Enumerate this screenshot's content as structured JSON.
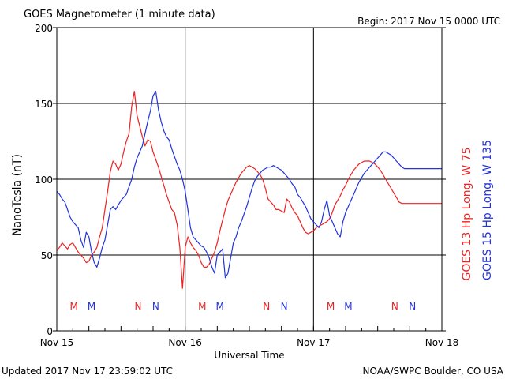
{
  "header": {
    "title": "GOES Magnetometer (1 minute data)",
    "begin": "Begin:  2017 Nov 15 0000 UTC"
  },
  "footer": {
    "updated": "Updated 2017 Nov 17 23:59:02 UTC",
    "source": "NOAA/SWPC Boulder, CO USA"
  },
  "colors": {
    "goes13": "#ee2222",
    "goes15": "#2233dd",
    "axis": "#000000"
  },
  "chart_data": {
    "type": "line",
    "title": "GOES Magnetometer (1 minute data)",
    "xlabel": "Universal Time",
    "ylabel": "NanoTesla (nT)",
    "xlim": [
      0,
      72
    ],
    "x_unit": "hours since 2017 Nov 15 0000 UTC",
    "ylim": [
      0,
      200
    ],
    "y_ticks": [
      0,
      50,
      100,
      150,
      200
    ],
    "x_ticks": [
      {
        "x": 0,
        "label": "Nov 15"
      },
      {
        "x": 24,
        "label": "Nov 16"
      },
      {
        "x": 48,
        "label": "Nov 17"
      },
      {
        "x": 72,
        "label": "Nov 18"
      }
    ],
    "grid": true,
    "series": [
      {
        "name": "GOES 13 Hp",
        "legend": "GOES 13 Hp  Long. W 75",
        "color": "#ee2222",
        "x": [
          0,
          0.5,
          1,
          1.5,
          2,
          2.5,
          3,
          3.5,
          4,
          4.5,
          5,
          5.5,
          6,
          6.5,
          7,
          7.5,
          8,
          8.5,
          9,
          9.5,
          10,
          10.5,
          11,
          11.5,
          12,
          12.5,
          13,
          13.5,
          14,
          14.5,
          15,
          15.5,
          16,
          16.5,
          17,
          17.5,
          18,
          18.5,
          19,
          19.5,
          20,
          20.5,
          21,
          21.5,
          22,
          22.5,
          23,
          23.5,
          24,
          24.5,
          25,
          25.5,
          26,
          26.5,
          27,
          27.5,
          28,
          28.5,
          29,
          29.5,
          30,
          30.5,
          31,
          31.5,
          32,
          32.5,
          33,
          33.5,
          34,
          34.5,
          35,
          35.5,
          36,
          36.5,
          37,
          37.5,
          38,
          38.5,
          39,
          39.5,
          40,
          40.5,
          41,
          41.5,
          42,
          42.5,
          43,
          43.5,
          44,
          44.5,
          45,
          45.5,
          46,
          46.5,
          47,
          47.5,
          48,
          48.5,
          49,
          49.5,
          50,
          50.5,
          51,
          51.5,
          52,
          52.5,
          53,
          53.5,
          54,
          54.5,
          55,
          55.5,
          56,
          56.5,
          57,
          57.5,
          58,
          58.5,
          59,
          59.5,
          60,
          60.5,
          61,
          61.5,
          62,
          62.5,
          63,
          63.5,
          64,
          64.5,
          65,
          65.5,
          66,
          66.5,
          67,
          67.5,
          68,
          68.5,
          69,
          69.5,
          70,
          70.5,
          71,
          71.5,
          72
        ],
        "values": [
          53,
          55,
          58,
          56,
          54,
          57,
          58,
          55,
          52,
          50,
          48,
          45,
          46,
          50,
          52,
          55,
          62,
          68,
          80,
          92,
          105,
          112,
          110,
          106,
          110,
          118,
          125,
          130,
          148,
          158,
          142,
          135,
          128,
          122,
          126,
          125,
          118,
          113,
          108,
          102,
          96,
          90,
          85,
          80,
          78,
          70,
          55,
          28,
          55,
          62,
          58,
          55,
          53,
          50,
          45,
          42,
          42,
          44,
          48,
          52,
          58,
          66,
          73,
          80,
          86,
          90,
          94,
          98,
          101,
          104,
          106,
          108,
          109,
          108,
          107,
          105,
          103,
          100,
          94,
          87,
          85,
          83,
          80,
          80,
          79,
          78,
          87,
          85,
          81,
          78,
          76,
          72,
          68,
          65,
          64,
          65,
          66,
          68,
          69,
          70,
          71,
          72,
          74,
          78,
          83,
          86,
          89,
          93,
          96,
          100,
          103,
          106,
          108,
          110,
          111,
          112,
          112,
          112,
          111,
          110,
          108,
          106,
          103,
          100,
          97,
          94,
          91,
          88,
          85,
          84,
          84,
          84,
          84,
          84,
          84,
          84,
          84,
          84,
          84,
          84,
          84,
          84,
          84,
          84,
          84
        ],
        "markers": [
          {
            "x": 3.2,
            "label": "M"
          },
          {
            "x": 15.2,
            "label": "N"
          },
          {
            "x": 27.2,
            "label": "M"
          },
          {
            "x": 39.2,
            "label": "N"
          },
          {
            "x": 51.2,
            "label": "M"
          },
          {
            "x": 63.2,
            "label": "N"
          }
        ]
      },
      {
        "name": "GOES 15 Hp",
        "legend": "GOES 15 Hp  Long. W 135",
        "color": "#2233dd",
        "x": [
          0,
          0.5,
          1,
          1.5,
          2,
          2.5,
          3,
          3.5,
          4,
          4.5,
          5,
          5.5,
          6,
          6.5,
          7,
          7.5,
          8,
          8.5,
          9,
          9.5,
          10,
          10.5,
          11,
          11.5,
          12,
          12.5,
          13,
          13.5,
          14,
          14.5,
          15,
          15.5,
          16,
          16.5,
          17,
          17.5,
          18,
          18.5,
          19,
          19.5,
          20,
          20.5,
          21,
          21.5,
          22,
          22.5,
          23,
          23.5,
          24,
          24.5,
          25,
          25.5,
          26,
          26.5,
          27,
          27.5,
          28,
          28.5,
          29,
          29.5,
          30,
          30.5,
          31,
          31.5,
          32,
          32.5,
          33,
          33.5,
          34,
          34.5,
          35,
          35.5,
          36,
          36.5,
          37,
          37.5,
          38,
          38.5,
          39,
          39.5,
          40,
          40.5,
          41,
          41.5,
          42,
          42.5,
          43,
          43.5,
          44,
          44.5,
          45,
          45.5,
          46,
          46.5,
          47,
          47.5,
          48,
          48.5,
          49,
          49.5,
          50,
          50.5,
          51,
          51.5,
          52,
          52.5,
          53,
          53.5,
          54,
          54.5,
          55,
          55.5,
          56,
          56.5,
          57,
          57.5,
          58,
          58.5,
          59,
          59.5,
          60,
          60.5,
          61,
          61.5,
          62,
          62.5,
          63,
          63.5,
          64,
          64.5,
          65,
          65.5,
          66,
          66.5,
          67,
          67.5,
          68,
          68.5,
          69,
          69.5,
          70,
          70.5,
          71,
          71.5,
          72
        ],
        "values": [
          92,
          90,
          87,
          85,
          80,
          75,
          72,
          70,
          68,
          60,
          55,
          65,
          62,
          52,
          45,
          42,
          48,
          55,
          60,
          70,
          80,
          82,
          80,
          83,
          86,
          88,
          90,
          95,
          100,
          108,
          114,
          118,
          122,
          130,
          138,
          145,
          155,
          158,
          146,
          138,
          132,
          128,
          126,
          120,
          115,
          110,
          106,
          100,
          92,
          80,
          68,
          62,
          60,
          58,
          56,
          55,
          52,
          48,
          42,
          38,
          50,
          52,
          54,
          35,
          38,
          48,
          58,
          62,
          68,
          72,
          77,
          82,
          88,
          94,
          99,
          102,
          104,
          106,
          107,
          108,
          108,
          109,
          108,
          107,
          106,
          104,
          102,
          100,
          97,
          95,
          90,
          88,
          85,
          82,
          78,
          74,
          72,
          70,
          68,
          72,
          80,
          86,
          76,
          72,
          68,
          64,
          62,
          72,
          78,
          82,
          86,
          90,
          94,
          98,
          101,
          104,
          106,
          108,
          110,
          112,
          114,
          116,
          118,
          118,
          117,
          116,
          114,
          112,
          110,
          108,
          107,
          107,
          107,
          107,
          107,
          107,
          107,
          107,
          107,
          107,
          107,
          107,
          107,
          107,
          107
        ],
        "markers": [
          {
            "x": 6.5,
            "label": "M"
          },
          {
            "x": 18.5,
            "label": "N"
          },
          {
            "x": 30.5,
            "label": "M"
          },
          {
            "x": 42.5,
            "label": "N"
          },
          {
            "x": 54.5,
            "label": "M"
          },
          {
            "x": 66.5,
            "label": "N"
          }
        ]
      }
    ]
  }
}
